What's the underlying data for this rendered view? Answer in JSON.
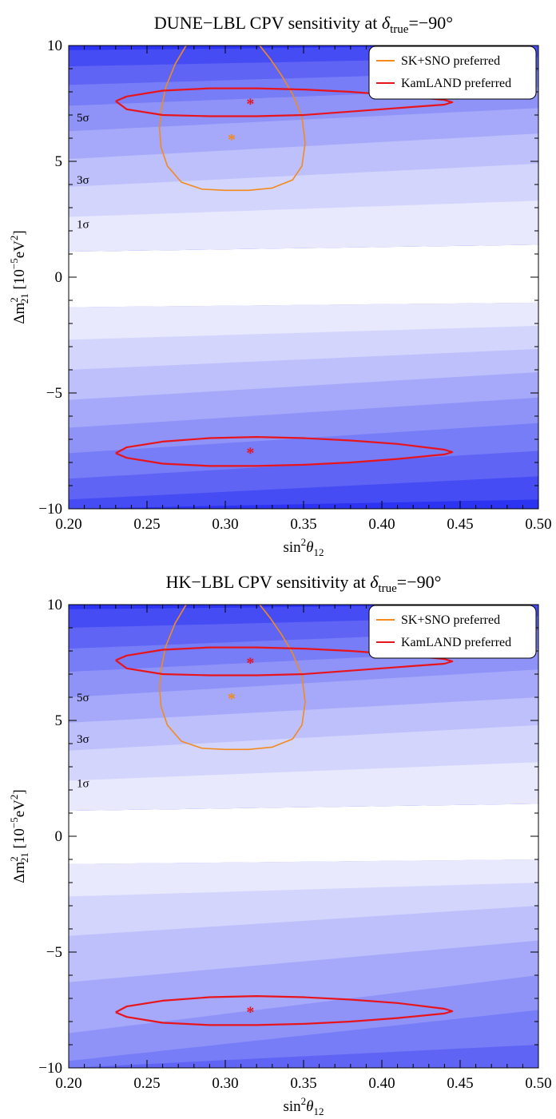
{
  "chart_data": [
    {
      "type": "contour",
      "title": "DUNE−LBL CPV sensitivity at δtrue=−90°",
      "title_parts": {
        "pre": "DUNE−LBL CPV sensitivity at ",
        "delta": "δ",
        "sub": "true",
        "post": "=−90°"
      },
      "xlabel": "sin²θ₁₂",
      "xlabel_parts": {
        "base": "sin",
        "sup": "2",
        "theta": "θ",
        "sub": "12"
      },
      "ylabel": "Δm²₂₁ [10⁻⁵eV²]",
      "ylabel_parts": {
        "base": "Δm",
        "sup": "2",
        "sub": "21",
        "unit_pre": " [10",
        "unit_exp": "−5",
        "unit_mid": "eV",
        "unit_exp2": "2",
        "unit_post": "]"
      },
      "xlim": [
        0.2,
        0.5
      ],
      "ylim": [
        -10,
        10
      ],
      "xticks": [
        0.2,
        0.25,
        0.3,
        0.35,
        0.4,
        0.45,
        0.5
      ],
      "xtick_labels": [
        "0.20",
        "0.25",
        "0.30",
        "0.35",
        "0.40",
        "0.45",
        "0.50"
      ],
      "yticks": [
        -10,
        -5,
        0,
        5,
        10
      ],
      "ytick_labels": [
        "−10",
        "−5",
        "0",
        "5",
        "10"
      ],
      "sigma_labels": [
        {
          "text": "1σ",
          "y": 2.3
        },
        {
          "text": "3σ",
          "y": 4.2
        },
        {
          "text": "5σ",
          "y": 6.9
        }
      ],
      "contour_fill": {
        "colors": [
          "#ffffff",
          "#e8e9fd",
          "#d3d5fc",
          "#bdc0fb",
          "#a6a9f9",
          "#8f93f8",
          "#777cf7",
          "#5f64f5",
          "#464cf4",
          "#2c34f2"
        ],
        "top_boundaries": [
          {
            "at_x020": 1.1,
            "at_x050": 1.4
          },
          {
            "at_x020": 2.6,
            "at_x050": 3.3
          },
          {
            "at_x020": 3.9,
            "at_x050": 4.9
          },
          {
            "at_x020": 5.1,
            "at_x050": 6.2
          },
          {
            "at_x020": 6.3,
            "at_x050": 7.3
          },
          {
            "at_x020": 7.4,
            "at_x050": 8.2
          },
          {
            "at_x020": 8.3,
            "at_x050": 8.9
          },
          {
            "at_x020": 9.1,
            "at_x050": 9.5
          },
          {
            "at_x020": 9.8,
            "at_x050": 10.0
          }
        ],
        "bottom_boundaries": [
          {
            "at_x020": -1.3,
            "at_x050": -1.1
          },
          {
            "at_x020": -2.7,
            "at_x050": -2.1
          },
          {
            "at_x020": -4.0,
            "at_x050": -3.1
          },
          {
            "at_x020": -5.3,
            "at_x050": -4.1
          },
          {
            "at_x020": -6.5,
            "at_x050": -5.2
          },
          {
            "at_x020": -7.6,
            "at_x050": -6.3
          },
          {
            "at_x020": -8.7,
            "at_x050": -7.5
          },
          {
            "at_x020": -9.6,
            "at_x050": -8.6
          },
          {
            "at_x020": -10.0,
            "at_x050": -9.6
          }
        ]
      },
      "series": [
        {
          "name": "SK+SNO preferred",
          "color": "#f28a1e",
          "type": "contour",
          "x": [
            0.275,
            0.268,
            0.262,
            0.259,
            0.258,
            0.259,
            0.263,
            0.272,
            0.285,
            0.3,
            0.315,
            0.33,
            0.343,
            0.349,
            0.351,
            0.349,
            0.343,
            0.336,
            0.329,
            0.322
          ],
          "y": [
            10.0,
            9.2,
            8.2,
            7.2,
            6.4,
            5.6,
            4.8,
            4.1,
            3.8,
            3.75,
            3.75,
            3.85,
            4.2,
            4.8,
            5.8,
            6.9,
            7.9,
            8.7,
            9.4,
            10.0
          ]
        },
        {
          "name": "KamLAND preferred",
          "color": "#e8141c",
          "type": "contour",
          "x": [
            0.23,
            0.237,
            0.26,
            0.29,
            0.32,
            0.35,
            0.38,
            0.41,
            0.44,
            0.445,
            0.44,
            0.41,
            0.38,
            0.35,
            0.32,
            0.29,
            0.26,
            0.237,
            0.23
          ],
          "y": [
            7.6,
            7.8,
            8.05,
            8.15,
            8.15,
            8.1,
            8.0,
            7.85,
            7.65,
            7.55,
            7.45,
            7.3,
            7.15,
            7.0,
            6.95,
            6.95,
            7.0,
            7.25,
            7.6
          ]
        },
        {
          "name": "",
          "color": "#e8141c",
          "type": "contour",
          "x": [
            0.23,
            0.237,
            0.26,
            0.29,
            0.32,
            0.35,
            0.38,
            0.41,
            0.44,
            0.445,
            0.44,
            0.41,
            0.38,
            0.35,
            0.32,
            0.29,
            0.26,
            0.237,
            0.23
          ],
          "y": [
            -7.6,
            -7.35,
            -7.1,
            -6.95,
            -6.9,
            -6.95,
            -7.05,
            -7.2,
            -7.45,
            -7.55,
            -7.65,
            -7.85,
            -8.0,
            -8.1,
            -8.15,
            -8.15,
            -8.05,
            -7.8,
            -7.6
          ]
        }
      ],
      "markers": [
        {
          "x": 0.316,
          "y": 7.54,
          "color": "#e8141c",
          "symbol": "*"
        },
        {
          "x": 0.316,
          "y": -7.54,
          "color": "#e8141c",
          "symbol": "*"
        },
        {
          "x": 0.304,
          "y": 6.0,
          "color": "#f28a1e",
          "symbol": "*"
        }
      ],
      "legend": {
        "position": "top-right",
        "entries": [
          {
            "name": "SK+SNO preferred",
            "color": "#f28a1e"
          },
          {
            "name": "KamLAND preferred",
            "color": "#e8141c"
          }
        ]
      },
      "grid": false
    },
    {
      "type": "contour",
      "title": "HK−LBL CPV sensitivity at δtrue=−90°",
      "title_parts": {
        "pre": "HK−LBL CPV sensitivity at ",
        "delta": "δ",
        "sub": "true",
        "post": "=−90°"
      },
      "xlabel": "sin²θ₁₂",
      "xlabel_parts": {
        "base": "sin",
        "sup": "2",
        "theta": "θ",
        "sub": "12"
      },
      "ylabel": "Δm²₂₁ [10⁻⁵eV²]",
      "ylabel_parts": {
        "base": "Δm",
        "sup": "2",
        "sub": "21",
        "unit_pre": " [10",
        "unit_exp": "−5",
        "unit_mid": "eV",
        "unit_exp2": "2",
        "unit_post": "]"
      },
      "xlim": [
        0.2,
        0.5
      ],
      "ylim": [
        -10,
        10
      ],
      "xticks": [
        0.2,
        0.25,
        0.3,
        0.35,
        0.4,
        0.45,
        0.5
      ],
      "xtick_labels": [
        "0.20",
        "0.25",
        "0.30",
        "0.35",
        "0.40",
        "0.45",
        "0.50"
      ],
      "yticks": [
        -10,
        -5,
        0,
        5,
        10
      ],
      "ytick_labels": [
        "−10",
        "−5",
        "0",
        "5",
        "10"
      ],
      "sigma_labels": [
        {
          "text": "1σ",
          "y": 2.3
        },
        {
          "text": "3σ",
          "y": 4.2
        },
        {
          "text": "5σ",
          "y": 6.0
        }
      ],
      "contour_fill": {
        "colors": [
          "#ffffff",
          "#e8e9fd",
          "#d3d5fc",
          "#bdc0fb",
          "#a6a9f9",
          "#8f93f8",
          "#777cf7",
          "#5f64f5",
          "#464cf4",
          "#2c34f2"
        ],
        "top_boundaries": [
          {
            "at_x020": 1.1,
            "at_x050": 1.4
          },
          {
            "at_x020": 2.4,
            "at_x050": 3.2
          },
          {
            "at_x020": 3.7,
            "at_x050": 4.8
          },
          {
            "at_x020": 4.9,
            "at_x050": 6.0
          },
          {
            "at_x020": 6.0,
            "at_x050": 7.2
          },
          {
            "at_x020": 7.1,
            "at_x050": 8.1
          },
          {
            "at_x020": 8.1,
            "at_x050": 8.9
          },
          {
            "at_x020": 9.0,
            "at_x050": 9.5
          },
          {
            "at_x020": 9.8,
            "at_x050": 10.0
          }
        ],
        "bottom_boundaries": [
          {
            "at_x020": -1.2,
            "at_x050": -1.0
          },
          {
            "at_x020": -2.6,
            "at_x050": -2.0
          },
          {
            "at_x020": -4.3,
            "at_x050": -3.0
          },
          {
            "at_x020": -6.3,
            "at_x050": -4.5
          },
          {
            "at_x020": -8.5,
            "at_x050": -6.0
          },
          {
            "at_x020": -9.7,
            "at_x050": -7.5
          },
          {
            "at_x020": -10.0,
            "at_x050": -9.0
          }
        ]
      },
      "series": [
        {
          "name": "SK+SNO preferred",
          "color": "#f28a1e",
          "type": "contour",
          "x": [
            0.275,
            0.268,
            0.262,
            0.259,
            0.258,
            0.259,
            0.263,
            0.272,
            0.285,
            0.3,
            0.315,
            0.33,
            0.343,
            0.349,
            0.351,
            0.349,
            0.343,
            0.336,
            0.329,
            0.322
          ],
          "y": [
            10.0,
            9.2,
            8.2,
            7.2,
            6.4,
            5.6,
            4.8,
            4.1,
            3.8,
            3.75,
            3.75,
            3.85,
            4.2,
            4.8,
            5.8,
            6.9,
            7.9,
            8.7,
            9.4,
            10.0
          ]
        },
        {
          "name": "KamLAND preferred",
          "color": "#e8141c",
          "type": "contour",
          "x": [
            0.23,
            0.237,
            0.26,
            0.29,
            0.32,
            0.35,
            0.38,
            0.41,
            0.44,
            0.445,
            0.44,
            0.41,
            0.38,
            0.35,
            0.32,
            0.29,
            0.26,
            0.237,
            0.23
          ],
          "y": [
            7.6,
            7.8,
            8.05,
            8.15,
            8.15,
            8.1,
            8.0,
            7.85,
            7.65,
            7.55,
            7.45,
            7.3,
            7.15,
            7.0,
            6.95,
            6.95,
            7.0,
            7.25,
            7.6
          ]
        },
        {
          "name": "",
          "color": "#e8141c",
          "type": "contour",
          "x": [
            0.23,
            0.237,
            0.26,
            0.29,
            0.32,
            0.35,
            0.38,
            0.41,
            0.44,
            0.445,
            0.44,
            0.41,
            0.38,
            0.35,
            0.32,
            0.29,
            0.26,
            0.237,
            0.23
          ],
          "y": [
            -7.6,
            -7.35,
            -7.1,
            -6.95,
            -6.9,
            -6.95,
            -7.05,
            -7.2,
            -7.45,
            -7.55,
            -7.65,
            -7.85,
            -8.0,
            -8.1,
            -8.15,
            -8.15,
            -8.05,
            -7.8,
            -7.6
          ]
        }
      ],
      "markers": [
        {
          "x": 0.316,
          "y": 7.54,
          "color": "#e8141c",
          "symbol": "*"
        },
        {
          "x": 0.316,
          "y": -7.54,
          "color": "#e8141c",
          "symbol": "*"
        },
        {
          "x": 0.304,
          "y": 6.0,
          "color": "#f28a1e",
          "symbol": "*"
        }
      ],
      "legend": {
        "position": "top-right",
        "entries": [
          {
            "name": "SK+SNO preferred",
            "color": "#f28a1e"
          },
          {
            "name": "KamLAND preferred",
            "color": "#e8141c"
          }
        ]
      },
      "grid": false
    }
  ]
}
